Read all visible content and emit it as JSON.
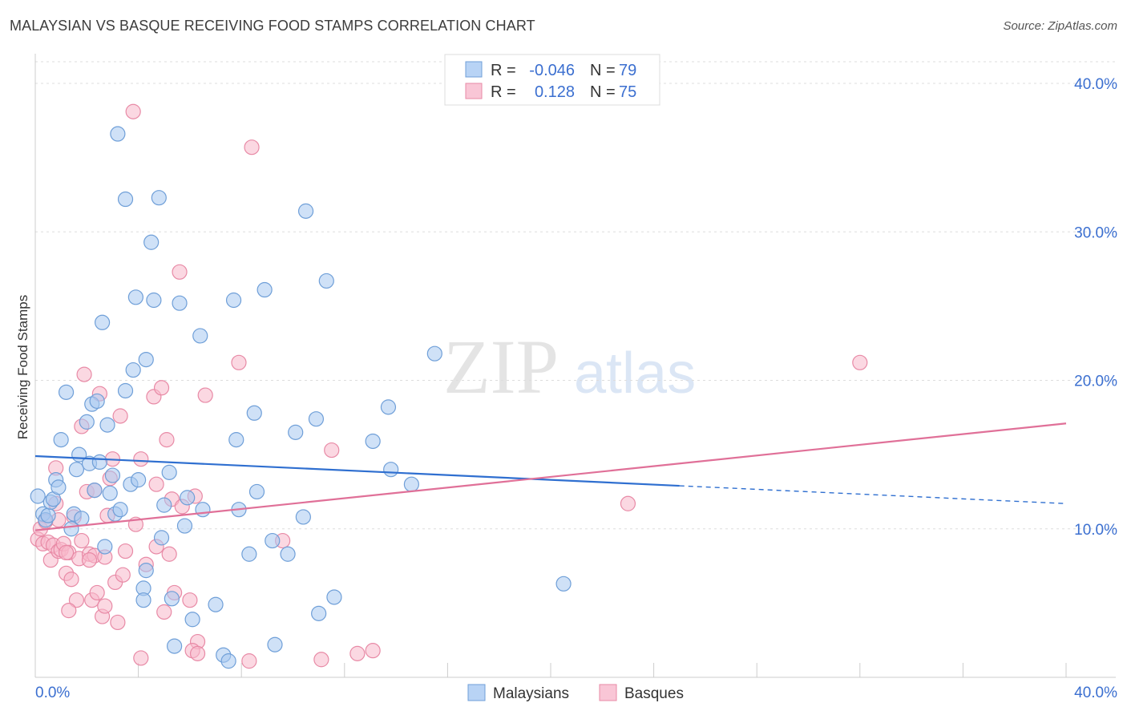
{
  "title": "MALAYSIAN VS BASQUE RECEIVING FOOD STAMPS CORRELATION CHART",
  "source": "Source: ZipAtlas.com",
  "watermark": {
    "zip": "ZIP",
    "atlas": "atlas"
  },
  "legend": {
    "r_label": "R =",
    "n_label": "N =",
    "rows": [
      {
        "series": "Malaysians",
        "r": "-0.046",
        "n": "79"
      },
      {
        "series": "Basques",
        "r": "0.128",
        "n": "75"
      }
    ]
  },
  "bottom_legend": [
    "Malaysians",
    "Basques"
  ],
  "colors": {
    "malaysians_fill": "#a8c8f0",
    "malaysians_stroke": "#6f9fd8",
    "malaysians_line": "#2f6fd0",
    "basques_fill": "#f7b8cb",
    "basques_stroke": "#e88aa6",
    "basques_line": "#e07098",
    "axis_label": "#3b6fd0",
    "grid": "#dddddd"
  },
  "chart_data": {
    "type": "scatter",
    "title": "MALAYSIAN VS BASQUE RECEIVING FOOD STAMPS CORRELATION CHART",
    "xlabel": "",
    "ylabel": "Receiving Food Stamps",
    "xlim": [
      0,
      40
    ],
    "ylim": [
      0,
      42
    ],
    "x_tick_labels": [
      "0.0%",
      "40.0%"
    ],
    "y_ticks": [
      10,
      20,
      30,
      40
    ],
    "y_tick_labels": [
      "10.0%",
      "20.0%",
      "30.0%",
      "40.0%"
    ],
    "series": [
      {
        "name": "Malaysians",
        "r": -0.046,
        "n": 79,
        "trend": {
          "x0": 0,
          "y0": 14.9,
          "x1": 25.0,
          "y1": 12.9,
          "dash_to_x": 40,
          "dash_to_y": 11.7
        },
        "points": [
          [
            0.1,
            12.2
          ],
          [
            0.3,
            11.0
          ],
          [
            0.4,
            10.6
          ],
          [
            0.5,
            10.9
          ],
          [
            0.6,
            11.8
          ],
          [
            0.7,
            12.0
          ],
          [
            0.8,
            13.3
          ],
          [
            0.9,
            12.8
          ],
          [
            1.0,
            16.0
          ],
          [
            1.2,
            19.2
          ],
          [
            1.4,
            10.0
          ],
          [
            1.5,
            11.0
          ],
          [
            1.6,
            14.0
          ],
          [
            1.7,
            15.0
          ],
          [
            1.8,
            10.7
          ],
          [
            2.0,
            17.2
          ],
          [
            2.1,
            14.4
          ],
          [
            2.2,
            18.4
          ],
          [
            2.3,
            12.6
          ],
          [
            2.4,
            18.6
          ],
          [
            2.5,
            14.5
          ],
          [
            2.6,
            23.9
          ],
          [
            2.8,
            17.0
          ],
          [
            2.9,
            12.4
          ],
          [
            3.0,
            13.6
          ],
          [
            3.1,
            11.0
          ],
          [
            3.2,
            36.6
          ],
          [
            3.3,
            11.3
          ],
          [
            3.5,
            32.2
          ],
          [
            3.5,
            19.3
          ],
          [
            3.7,
            13.0
          ],
          [
            3.8,
            20.7
          ],
          [
            3.9,
            25.6
          ],
          [
            4.0,
            13.3
          ],
          [
            4.2,
            6.0
          ],
          [
            4.2,
            5.2
          ],
          [
            4.3,
            21.4
          ],
          [
            4.5,
            29.3
          ],
          [
            4.6,
            25.4
          ],
          [
            4.8,
            32.3
          ],
          [
            4.9,
            9.4
          ],
          [
            5.0,
            11.6
          ],
          [
            5.2,
            13.8
          ],
          [
            5.3,
            5.3
          ],
          [
            5.4,
            2.1
          ],
          [
            5.6,
            25.2
          ],
          [
            5.8,
            10.2
          ],
          [
            5.9,
            12.1
          ],
          [
            6.1,
            3.9
          ],
          [
            6.4,
            23.0
          ],
          [
            6.5,
            11.3
          ],
          [
            7.0,
            4.9
          ],
          [
            7.3,
            1.5
          ],
          [
            7.5,
            1.1
          ],
          [
            7.7,
            25.4
          ],
          [
            7.8,
            16.0
          ],
          [
            7.9,
            11.3
          ],
          [
            8.3,
            8.3
          ],
          [
            8.5,
            17.8
          ],
          [
            8.6,
            12.5
          ],
          [
            8.9,
            26.1
          ],
          [
            9.2,
            9.2
          ],
          [
            9.3,
            2.2
          ],
          [
            9.8,
            8.3
          ],
          [
            10.1,
            16.5
          ],
          [
            10.4,
            10.8
          ],
          [
            10.5,
            31.4
          ],
          [
            10.9,
            17.4
          ],
          [
            11.0,
            4.3
          ],
          [
            11.3,
            26.7
          ],
          [
            11.6,
            5.4
          ],
          [
            13.1,
            15.9
          ],
          [
            13.7,
            18.2
          ],
          [
            13.8,
            14.0
          ],
          [
            14.6,
            13.0
          ],
          [
            15.5,
            21.8
          ],
          [
            20.5,
            6.3
          ],
          [
            4.3,
            7.2
          ],
          [
            2.7,
            8.8
          ]
        ]
      },
      {
        "name": "Basques",
        "r": 0.128,
        "n": 75,
        "trend": {
          "x0": 0,
          "y0": 9.9,
          "x1": 40,
          "y1": 17.1
        },
        "points": [
          [
            0.1,
            9.3
          ],
          [
            0.2,
            10.0
          ],
          [
            0.3,
            9.0
          ],
          [
            0.4,
            10.5
          ],
          [
            0.5,
            9.1
          ],
          [
            0.6,
            7.9
          ],
          [
            0.7,
            8.9
          ],
          [
            0.8,
            14.1
          ],
          [
            0.8,
            11.7
          ],
          [
            0.9,
            8.5
          ],
          [
            1.0,
            8.6
          ],
          [
            1.1,
            9.0
          ],
          [
            1.2,
            7.0
          ],
          [
            1.3,
            8.4
          ],
          [
            1.4,
            6.6
          ],
          [
            1.5,
            10.8
          ],
          [
            1.6,
            5.2
          ],
          [
            1.7,
            8.0
          ],
          [
            1.8,
            16.9
          ],
          [
            1.9,
            20.4
          ],
          [
            2.0,
            12.5
          ],
          [
            2.1,
            8.3
          ],
          [
            2.2,
            5.2
          ],
          [
            2.3,
            8.2
          ],
          [
            2.4,
            5.7
          ],
          [
            2.5,
            19.1
          ],
          [
            2.6,
            4.1
          ],
          [
            2.7,
            8.1
          ],
          [
            2.8,
            10.9
          ],
          [
            2.9,
            13.4
          ],
          [
            3.0,
            14.7
          ],
          [
            3.1,
            6.4
          ],
          [
            3.2,
            3.7
          ],
          [
            3.3,
            17.6
          ],
          [
            3.4,
            6.9
          ],
          [
            3.9,
            10.3
          ],
          [
            4.1,
            14.7
          ],
          [
            4.3,
            7.6
          ],
          [
            4.6,
            18.9
          ],
          [
            4.7,
            13.0
          ],
          [
            4.9,
            19.5
          ],
          [
            5.0,
            4.4
          ],
          [
            5.1,
            16.0
          ],
          [
            5.2,
            8.3
          ],
          [
            5.3,
            12.0
          ],
          [
            5.4,
            5.7
          ],
          [
            5.6,
            27.3
          ],
          [
            5.7,
            11.5
          ],
          [
            6.0,
            5.2
          ],
          [
            6.2,
            12.2
          ],
          [
            6.3,
            2.4
          ],
          [
            6.6,
            19.0
          ],
          [
            7.9,
            21.2
          ],
          [
            8.4,
            35.7
          ],
          [
            9.6,
            9.2
          ],
          [
            11.1,
            1.2
          ],
          [
            11.5,
            15.3
          ],
          [
            12.5,
            1.6
          ],
          [
            13.1,
            1.8
          ],
          [
            23.0,
            11.7
          ],
          [
            32.0,
            21.2
          ],
          [
            3.8,
            38.1
          ],
          [
            4.1,
            1.3
          ],
          [
            8.3,
            1.1
          ],
          [
            6.1,
            1.8
          ],
          [
            1.3,
            4.5
          ],
          [
            2.3,
            12.6
          ],
          [
            3.5,
            8.5
          ],
          [
            2.7,
            4.8
          ],
          [
            1.8,
            9.2
          ],
          [
            0.9,
            10.6
          ],
          [
            4.7,
            8.8
          ],
          [
            1.2,
            8.4
          ],
          [
            2.1,
            7.9
          ],
          [
            6.3,
            1.6
          ]
        ]
      }
    ]
  }
}
